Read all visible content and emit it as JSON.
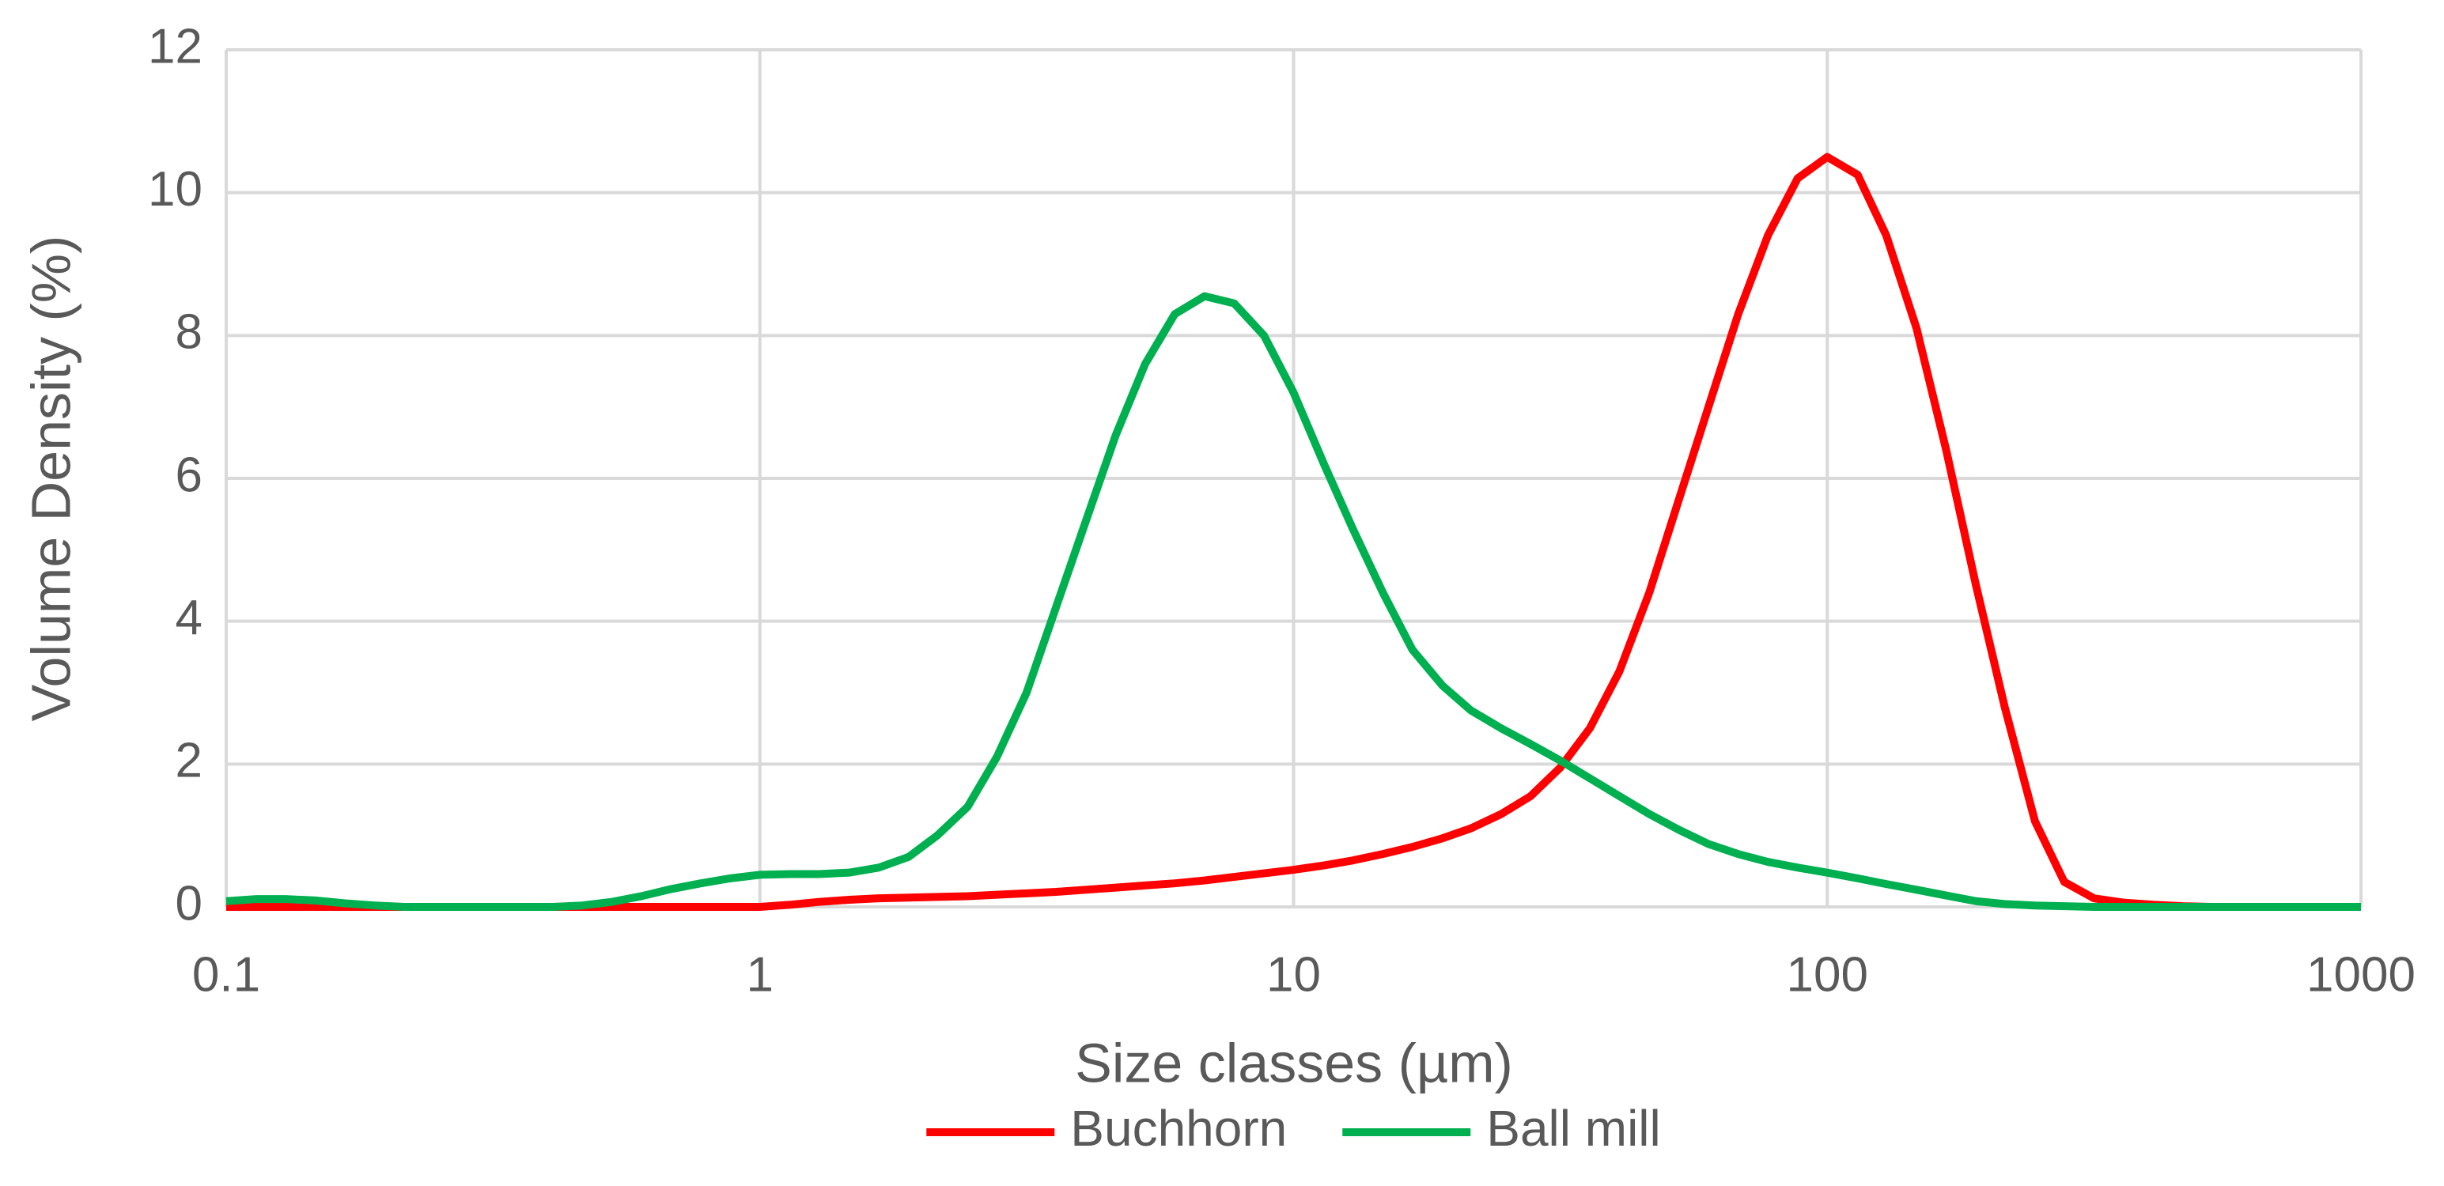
{
  "chart_data": {
    "type": "line",
    "x_label": "Size classes (µm)",
    "y_label": "Volume Density (%)",
    "x": [
      0.1,
      0.114,
      0.129,
      0.147,
      0.167,
      0.19,
      0.216,
      0.245,
      0.279,
      0.317,
      0.36,
      0.409,
      0.465,
      0.528,
      0.6,
      0.682,
      0.775,
      0.881,
      1.0,
      1.14,
      1.29,
      1.47,
      1.67,
      1.9,
      2.15,
      2.45,
      2.78,
      3.16,
      3.59,
      4.08,
      4.64,
      5.27,
      5.99,
      6.81,
      7.74,
      8.8,
      10.0,
      11.4,
      12.9,
      14.7,
      16.7,
      19.0,
      21.5,
      24.5,
      27.8,
      31.6,
      35.9,
      40.8,
      46.4,
      52.7,
      59.9,
      68.1,
      77.4,
      88.0,
      100,
      114,
      129,
      147,
      167,
      190,
      215,
      245,
      278,
      316,
      359,
      408,
      464,
      527,
      599,
      681,
      774,
      880,
      1000
    ],
    "series": [
      {
        "name": "Buchhorn",
        "color": "#ff0000",
        "values": [
          0,
          0,
          0,
          0,
          0,
          0,
          0,
          0,
          0,
          0,
          0,
          0,
          0,
          0,
          0,
          0,
          0,
          0,
          0,
          0.03,
          0.07,
          0.1,
          0.12,
          0.13,
          0.14,
          0.15,
          0.17,
          0.19,
          0.21,
          0.24,
          0.27,
          0.3,
          0.33,
          0.37,
          0.42,
          0.47,
          0.52,
          0.58,
          0.65,
          0.74,
          0.84,
          0.96,
          1.1,
          1.3,
          1.55,
          1.95,
          2.5,
          3.3,
          4.4,
          5.7,
          7.0,
          8.3,
          9.4,
          10.2,
          10.5,
          10.25,
          9.4,
          8.1,
          6.4,
          4.5,
          2.8,
          1.2,
          0.35,
          0.12,
          0.06,
          0.03,
          0.01,
          0,
          0,
          0,
          0,
          0,
          0
        ]
      },
      {
        "name": "Ball mill",
        "color": "#00b050",
        "values": [
          0.08,
          0.11,
          0.11,
          0.09,
          0.05,
          0.02,
          0,
          0,
          0,
          0,
          0,
          0,
          0.02,
          0.07,
          0.15,
          0.25,
          0.33,
          0.4,
          0.45,
          0.46,
          0.46,
          0.48,
          0.55,
          0.7,
          1.0,
          1.4,
          2.1,
          3.0,
          4.2,
          5.4,
          6.6,
          7.6,
          8.3,
          8.55,
          8.45,
          8.0,
          7.2,
          6.2,
          5.3,
          4.4,
          3.6,
          3.1,
          2.75,
          2.5,
          2.28,
          2.05,
          1.8,
          1.55,
          1.3,
          1.08,
          0.88,
          0.74,
          0.63,
          0.55,
          0.48,
          0.4,
          0.32,
          0.24,
          0.16,
          0.08,
          0.04,
          0.02,
          0.01,
          0,
          0,
          0,
          0,
          0,
          0,
          0,
          0,
          0,
          0
        ]
      }
    ],
    "xscale": "log",
    "xlim": [
      0.1,
      1000
    ],
    "xticks": [
      0.1,
      1,
      10,
      100,
      1000
    ],
    "ylim": [
      0,
      12
    ],
    "yticks": [
      0,
      2,
      4,
      6,
      8,
      10,
      12
    ],
    "grid": true,
    "legend": "bottom"
  }
}
